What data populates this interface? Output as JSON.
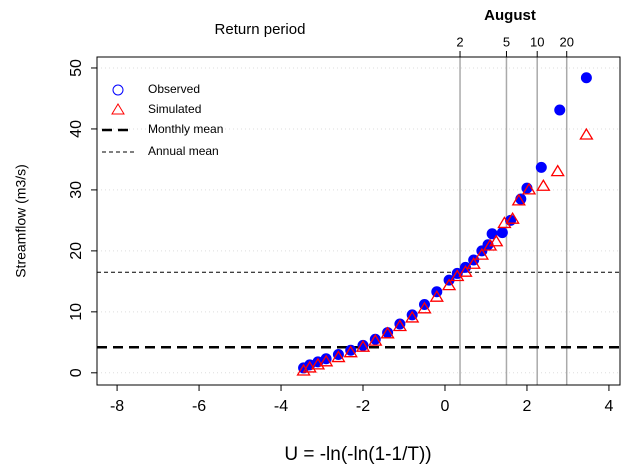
{
  "chart_data": {
    "type": "scatter",
    "title": "August",
    "x_label": "U = -ln(-ln(1-1/T))",
    "y_label": "Streamflow (m3/s)",
    "xlim": [
      -8.49,
      4.27
    ],
    "ylim": [
      -2.0,
      51.8
    ],
    "xticks": [
      -8,
      -6,
      -4,
      -2,
      0,
      2,
      4
    ],
    "yticks": [
      0,
      10,
      20,
      30,
      40,
      50
    ],
    "grid": true,
    "series": [
      {
        "name": "Observed",
        "color": "#0000ff",
        "marker": "circle",
        "x": [
          -3.45,
          -3.3,
          -3.1,
          -2.9,
          -2.6,
          -2.3,
          -2,
          -1.7,
          -1.4,
          -1.1,
          -0.8,
          -0.5,
          -0.2,
          0.1,
          0.3,
          0.5,
          0.7,
          0.9,
          1.05,
          1.15,
          1.4,
          1.6,
          1.85,
          2.0,
          2.35,
          2.8,
          3.45
        ],
        "values": [
          0.8,
          1.3,
          1.8,
          2.3,
          3,
          3.7,
          4.5,
          5.5,
          6.6,
          8,
          9.5,
          11.2,
          13.3,
          15.2,
          16.3,
          17.3,
          18.5,
          20,
          21,
          22.8,
          23,
          25,
          28.5,
          30.3,
          33.7,
          43.1,
          48.4
        ]
      },
      {
        "name": "Simulated",
        "color": "#ff0000",
        "marker": "triangle",
        "x": [
          -3.45,
          -3.3,
          -3.1,
          -2.9,
          -2.6,
          -2.3,
          -2,
          -1.7,
          -1.4,
          -1.1,
          -0.8,
          -0.5,
          -0.2,
          0.1,
          0.3,
          0.5,
          0.7,
          0.9,
          1.1,
          1.25,
          1.45,
          1.65,
          1.8,
          2.05,
          2.4,
          2.75,
          3.45
        ],
        "values": [
          0.3,
          0.8,
          1.3,
          1.8,
          2.5,
          3.3,
          4.2,
          5.2,
          6.4,
          7.6,
          9,
          10.5,
          12.4,
          14.3,
          15.8,
          16.5,
          17.8,
          19.3,
          20.8,
          21.5,
          24.5,
          25.2,
          28.2,
          30,
          30.6,
          33,
          39
        ]
      }
    ],
    "hlines": [
      {
        "name": "Monthly mean",
        "value": 4.2,
        "style": "thick-dash",
        "color": "#000000"
      },
      {
        "name": "Annual mean",
        "value": 16.5,
        "style": "thin-dash",
        "color": "#000000"
      }
    ],
    "return_period": {
      "label": "Return period",
      "ticks": [
        {
          "value": 0.367,
          "label": "2"
        },
        {
          "value": 1.5,
          "label": "5"
        },
        {
          "value": 2.25,
          "label": "10"
        },
        {
          "value": 2.97,
          "label": "20"
        }
      ]
    }
  }
}
